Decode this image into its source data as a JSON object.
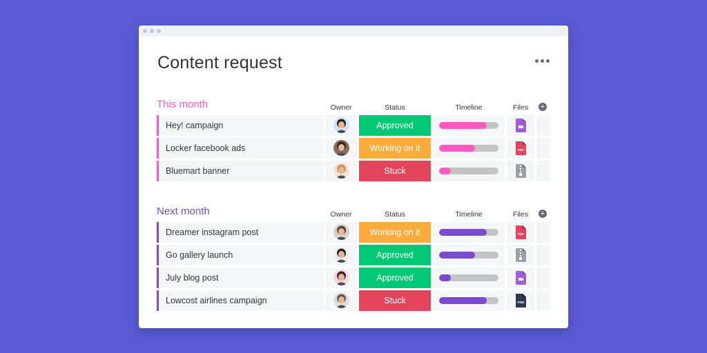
{
  "board": {
    "title": "Content request"
  },
  "columns": {
    "owner": "Owner",
    "status": "Status",
    "timeline": "Timeline",
    "files": "Files"
  },
  "colors": {
    "approved": "#00c875",
    "working": "#fdab3d",
    "stuck": "#e2445c",
    "this_month": "#ff5ac4",
    "next_month": "#784bd1"
  },
  "groups": [
    {
      "title": "This month",
      "color": "#ff5ac4",
      "rows": [
        {
          "name": "Hey! campaign",
          "status": "Approved",
          "status_color": "#00c875",
          "progress": 0.8,
          "file": "video",
          "avatar": "a1"
        },
        {
          "name": "Locker facebook ads",
          "status": "Working on it",
          "status_color": "#fdab3d",
          "progress": 0.6,
          "file": "pdf",
          "avatar": "a2"
        },
        {
          "name": "Bluemart banner",
          "status": "Stuck",
          "status_color": "#e2445c",
          "progress": 0.2,
          "file": "zip",
          "avatar": "a3"
        }
      ]
    },
    {
      "title": "Next month",
      "color": "#784bd1",
      "rows": [
        {
          "name": "Dreamer instagram post",
          "status": "Working on it",
          "status_color": "#fdab3d",
          "progress": 0.8,
          "file": "pdf",
          "avatar": "a4"
        },
        {
          "name": "Go gallery launch",
          "status": "Approved",
          "status_color": "#00c875",
          "progress": 0.6,
          "file": "zip",
          "avatar": "a5"
        },
        {
          "name": "July blog post",
          "status": "Approved",
          "status_color": "#00c875",
          "progress": 0.2,
          "file": "video",
          "avatar": "a6"
        },
        {
          "name": "Lowcost airlines campaign",
          "status": "Stuck",
          "status_color": "#e2445c",
          "progress": 0.8,
          "file": "png",
          "avatar": "a7"
        }
      ]
    }
  ],
  "file_labels": {
    "pdf": "PDF",
    "png": "PNG"
  }
}
